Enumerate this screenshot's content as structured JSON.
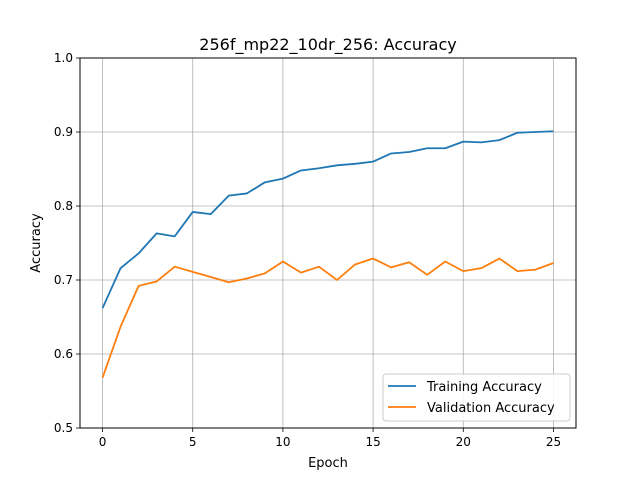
{
  "chart_data": {
    "type": "line",
    "title": "256f_mp22_10dr_256: Accuracy",
    "xlabel": "Epoch",
    "ylabel": "Accuracy",
    "xlim": [
      -1.25,
      26.25
    ],
    "ylim": [
      0.5,
      1.0
    ],
    "xticks": [
      0,
      5,
      10,
      15,
      20,
      25
    ],
    "xtick_labels": [
      "0",
      "5",
      "10",
      "15",
      "20",
      "25"
    ],
    "yticks": [
      0.5,
      0.6,
      0.7,
      0.8,
      0.9,
      1.0
    ],
    "ytick_labels": [
      "0.5",
      "0.6",
      "0.7",
      "0.8",
      "0.9",
      "1.0"
    ],
    "grid": true,
    "legend_position": "lower-right",
    "x": [
      0,
      1,
      2,
      3,
      4,
      5,
      6,
      7,
      8,
      9,
      10,
      11,
      12,
      13,
      14,
      15,
      16,
      17,
      18,
      19,
      20,
      21,
      22,
      23,
      24,
      25
    ],
    "series": [
      {
        "name": "Training Accuracy",
        "color": "#1f77b4",
        "values": [
          0.662,
          0.716,
          0.736,
          0.763,
          0.759,
          0.792,
          0.789,
          0.814,
          0.817,
          0.832,
          0.837,
          0.848,
          0.851,
          0.855,
          0.857,
          0.86,
          0.871,
          0.873,
          0.878,
          0.878,
          0.887,
          0.886,
          0.889,
          0.899,
          0.9,
          0.901
        ]
      },
      {
        "name": "Validation Accuracy",
        "color": "#ff7f0e",
        "values": [
          0.568,
          0.637,
          0.692,
          0.698,
          0.718,
          0.711,
          0.704,
          0.697,
          0.702,
          0.709,
          0.725,
          0.71,
          0.718,
          0.7,
          0.721,
          0.729,
          0.717,
          0.724,
          0.707,
          0.725,
          0.712,
          0.716,
          0.729,
          0.712,
          0.714,
          0.723
        ]
      }
    ]
  }
}
